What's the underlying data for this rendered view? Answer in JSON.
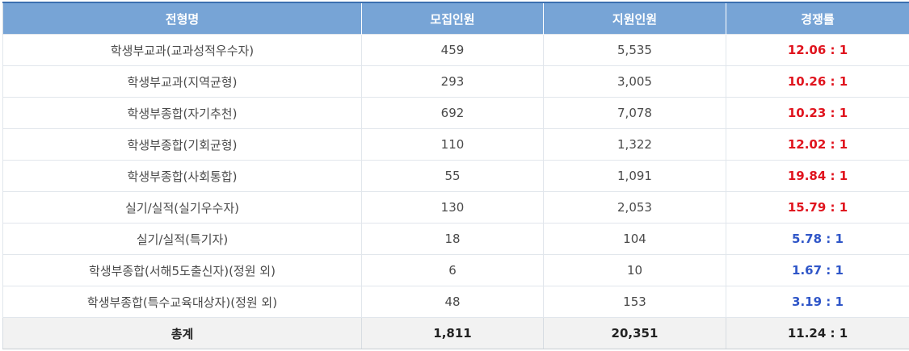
{
  "colors": {
    "header_bg": "#77a4d6",
    "top_border": "#3b6fb0",
    "ratio_high": "#e0141e",
    "ratio_low": "#2f56c8"
  },
  "table": {
    "headers": [
      "전형명",
      "모집인원",
      "지원인원",
      "경쟁률"
    ],
    "rows": [
      {
        "name": "학생부교과(교과성적우수자)",
        "quota": "459",
        "applicants": "5,535",
        "ratio": "12.06 : 1",
        "level": "high"
      },
      {
        "name": "학생부교과(지역균형)",
        "quota": "293",
        "applicants": "3,005",
        "ratio": "10.26 : 1",
        "level": "high"
      },
      {
        "name": "학생부종합(자기추천)",
        "quota": "692",
        "applicants": "7,078",
        "ratio": "10.23 : 1",
        "level": "high"
      },
      {
        "name": "학생부종합(기회균형)",
        "quota": "110",
        "applicants": "1,322",
        "ratio": "12.02 : 1",
        "level": "high"
      },
      {
        "name": "학생부종합(사회통합)",
        "quota": "55",
        "applicants": "1,091",
        "ratio": "19.84 : 1",
        "level": "high"
      },
      {
        "name": "실기/실적(실기우수자)",
        "quota": "130",
        "applicants": "2,053",
        "ratio": "15.79 : 1",
        "level": "high"
      },
      {
        "name": "실기/실적(특기자)",
        "quota": "18",
        "applicants": "104",
        "ratio": "5.78 : 1",
        "level": "low"
      },
      {
        "name": "학생부종합(서해5도출신자)(정원 외)",
        "quota": "6",
        "applicants": "10",
        "ratio": "1.67 : 1",
        "level": "low"
      },
      {
        "name": "학생부종합(특수교육대상자)(정원 외)",
        "quota": "48",
        "applicants": "153",
        "ratio": "3.19 : 1",
        "level": "low"
      }
    ],
    "total": {
      "name": "총계",
      "quota": "1,811",
      "applicants": "20,351",
      "ratio": "11.24 : 1"
    }
  }
}
